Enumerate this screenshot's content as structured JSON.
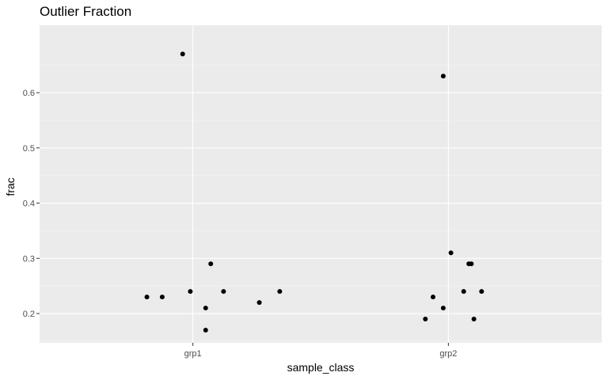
{
  "chart_data": {
    "type": "scatter",
    "title": "Outlier Fraction",
    "xlabel": "sample_class",
    "ylabel": "frac",
    "categories": [
      "grp1",
      "grp2"
    ],
    "ylim": [
      0.147,
      0.722
    ],
    "yticks": [
      0.2,
      0.3,
      0.4,
      0.5,
      0.6
    ],
    "ytick_labels": [
      "0.2",
      "0.3",
      "0.4",
      "0.5",
      "0.6"
    ],
    "xrange": [
      0.4,
      2.6
    ],
    "grid": true,
    "legend": "none",
    "colors": {
      "panel_bg": "#ebebeb",
      "grid_major": "#ffffff",
      "grid_minor": "#f5f5f5",
      "point": "#000000",
      "tick_text": "#4d4d4d"
    },
    "points": [
      {
        "x": 0.82,
        "y": 0.23
      },
      {
        "x": 0.88,
        "y": 0.23
      },
      {
        "x": 0.96,
        "y": 0.67
      },
      {
        "x": 0.99,
        "y": 0.24
      },
      {
        "x": 1.05,
        "y": 0.21
      },
      {
        "x": 1.05,
        "y": 0.17
      },
      {
        "x": 1.07,
        "y": 0.29
      },
      {
        "x": 1.12,
        "y": 0.24
      },
      {
        "x": 1.26,
        "y": 0.22
      },
      {
        "x": 1.34,
        "y": 0.24
      },
      {
        "x": 1.91,
        "y": 0.19
      },
      {
        "x": 1.94,
        "y": 0.23
      },
      {
        "x": 1.98,
        "y": 0.21
      },
      {
        "x": 1.98,
        "y": 0.63
      },
      {
        "x": 2.01,
        "y": 0.31
      },
      {
        "x": 2.06,
        "y": 0.24
      },
      {
        "x": 2.08,
        "y": 0.29
      },
      {
        "x": 2.09,
        "y": 0.29
      },
      {
        "x": 2.1,
        "y": 0.19
      },
      {
        "x": 2.13,
        "y": 0.24
      }
    ]
  }
}
